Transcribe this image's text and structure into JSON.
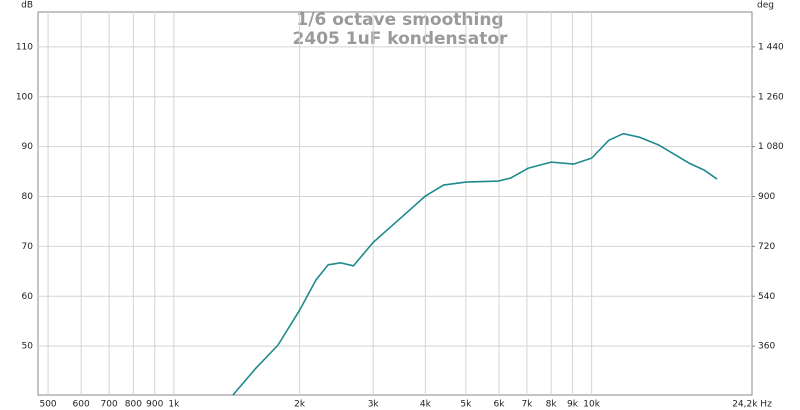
{
  "chart_data": {
    "type": "line",
    "title": "1/6 octave smoothing",
    "subtitle": "2405 1uF kondensator",
    "ylabel": "dB",
    "y2label": "deg",
    "xscale": "log",
    "grid": true,
    "color": "#1f8a8c",
    "xlim": [
      473,
      24200
    ],
    "xticks": [
      500,
      600,
      700,
      800,
      900,
      {
        "value": 1000,
        "label": "1k"
      },
      {
        "value": 2000,
        "label": "2k"
      },
      {
        "value": 3000,
        "label": "3k"
      },
      {
        "value": 4000,
        "label": "4k"
      },
      {
        "value": 5000,
        "label": "5k"
      },
      {
        "value": 6000,
        "label": "6k"
      },
      {
        "value": 7000,
        "label": "7k"
      },
      {
        "value": 8000,
        "label": "8k"
      },
      {
        "value": 9000,
        "label": "9k"
      },
      {
        "value": 10000,
        "label": "10k"
      },
      {
        "value": 24200,
        "label": "24,2k Hz"
      }
    ],
    "ylim": [
      40.2,
      117
    ],
    "yticks": [
      50,
      60,
      70,
      80,
      90,
      100,
      110
    ],
    "y2lim": [
      183.6,
      1566
    ],
    "y2ticks": [
      360,
      540,
      720,
      900,
      {
        "value": 1080,
        "label": "1 080"
      },
      {
        "value": 1260,
        "label": "1 260"
      },
      {
        "value": 1440,
        "label": "1 440"
      }
    ],
    "x": [
      1385,
      1573,
      1775,
      2000,
      2190,
      2340,
      2510,
      2690,
      3000,
      3450,
      4000,
      4420,
      5000,
      5980,
      6400,
      7060,
      8000,
      9050,
      10000,
      11000,
      11900,
      13000,
      14500,
      17100,
      18600,
      19950
    ],
    "values": [
      40.2,
      45.6,
      50.2,
      57.2,
      63.3,
      66.3,
      66.7,
      66.1,
      70.8,
      75.3,
      80.1,
      82.3,
      82.9,
      83.1,
      83.7,
      85.7,
      86.9,
      86.5,
      87.7,
      91.3,
      92.6,
      91.9,
      90.3,
      86.7,
      85.3,
      83.5
    ]
  }
}
